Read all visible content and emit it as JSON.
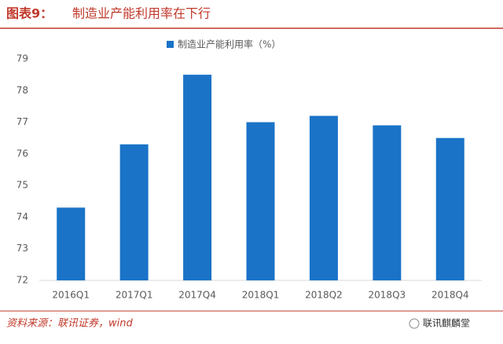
{
  "chart_data": {
    "type": "bar",
    "title_label": "图表9：",
    "title": "制造业产能利用率在下行",
    "categories": [
      "2016Q1",
      "2017Q1",
      "2017Q4",
      "2018Q1",
      "2018Q2",
      "2018Q3",
      "2018Q4"
    ],
    "series": [
      {
        "name": "制造业产能利用率（%）",
        "color": "#1a73c7",
        "values": [
          74.3,
          76.3,
          78.5,
          77.0,
          77.2,
          76.9,
          76.5
        ]
      }
    ],
    "ylim": [
      72,
      79
    ],
    "yticks": [
      72,
      73,
      74,
      75,
      76,
      77,
      78,
      79
    ],
    "grid": false,
    "source": "资料来源：联讯证券，wind",
    "watermark": "联讯麒麟堂"
  }
}
